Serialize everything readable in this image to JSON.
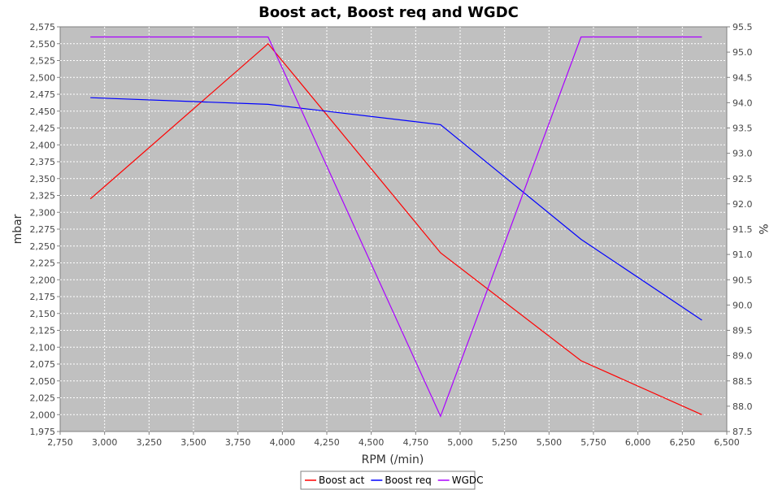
{
  "chart_data": {
    "type": "line",
    "title": "Boost act, Boost req and WGDC",
    "xlabel": "RPM (/min)",
    "ylabel": "mbar",
    "y2label": "%",
    "xlim": [
      2750,
      6500
    ],
    "ylim": [
      1975,
      2575
    ],
    "y2lim": [
      87.5,
      95.5
    ],
    "grid": true,
    "plot_background": "#c0c0c0",
    "legend_position": "bottom-center",
    "x_ticks": [
      "2,750",
      "3,000",
      "3,250",
      "3,500",
      "3,750",
      "4,000",
      "4,250",
      "4,500",
      "4,750",
      "5,000",
      "5,250",
      "5,500",
      "5,750",
      "6,000",
      "6,250",
      "6,500"
    ],
    "y_ticks": [
      "1,975",
      "2,000",
      "2,025",
      "2,050",
      "2,075",
      "2,100",
      "2,125",
      "2,150",
      "2,175",
      "2,200",
      "2,225",
      "2,250",
      "2,275",
      "2,300",
      "2,325",
      "2,350",
      "2,375",
      "2,400",
      "2,425",
      "2,450",
      "2,475",
      "2,500",
      "2,525",
      "2,550",
      "2,575"
    ],
    "y2_ticks": [
      "87.5",
      "88.0",
      "88.5",
      "89.0",
      "89.5",
      "90.0",
      "90.5",
      "91.0",
      "91.5",
      "92.0",
      "92.5",
      "93.0",
      "93.5",
      "94.0",
      "94.5",
      "95.0",
      "95.5"
    ],
    "x": [
      2920,
      3920,
      4890,
      5680,
      6360
    ],
    "series": [
      {
        "name": "Boost act",
        "axis": "left",
        "color": "#ff0000",
        "values": [
          2320,
          2550,
          2240,
          2080,
          2000
        ]
      },
      {
        "name": "Boost req",
        "axis": "left",
        "color": "#0000ff",
        "values": [
          2470,
          2460,
          2430,
          2260,
          2140
        ]
      },
      {
        "name": "WGDC",
        "axis": "right",
        "color": "#aa00ff",
        "values": [
          95.3,
          95.3,
          87.8,
          95.3,
          95.3
        ]
      }
    ]
  }
}
